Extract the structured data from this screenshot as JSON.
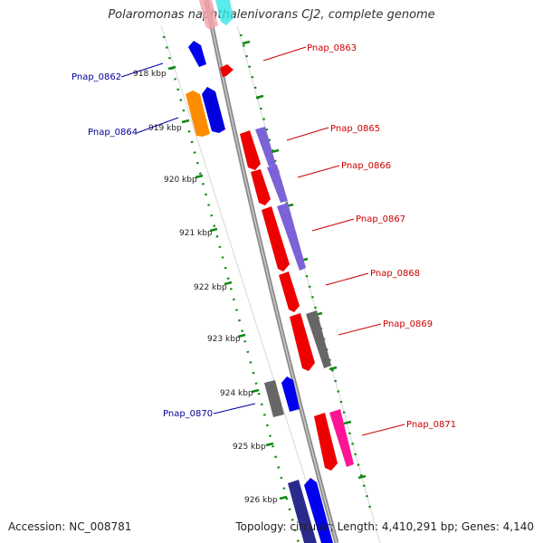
{
  "title": "Polaromonas naphthalenivorans CJ2, complete genome",
  "footer": {
    "accession": "Accession: NC_008781",
    "summary": "Topology: circular; Length: 4,410,291 bp; Genes: 4,140"
  },
  "colors": {
    "forward_label": "#cc0000",
    "reverse_label": "#000099",
    "backbone": "#888888",
    "ticks": "#118811"
  },
  "tick_labels": [
    "918 kbp",
    "919 kbp",
    "920 kbp",
    "921 kbp",
    "922 kbp",
    "923 kbp",
    "924 kbp",
    "925 kbp",
    "926 kbp"
  ],
  "genes": [
    {
      "name": "Pnap_0862",
      "strand": "reverse"
    },
    {
      "name": "Pnap_0863",
      "strand": "forward"
    },
    {
      "name": "Pnap_0864",
      "strand": "reverse"
    },
    {
      "name": "Pnap_0865",
      "strand": "forward"
    },
    {
      "name": "Pnap_0866",
      "strand": "forward"
    },
    {
      "name": "Pnap_0867",
      "strand": "forward"
    },
    {
      "name": "Pnap_0868",
      "strand": "forward"
    },
    {
      "name": "Pnap_0869",
      "strand": "forward"
    },
    {
      "name": "Pnap_0870",
      "strand": "reverse"
    },
    {
      "name": "Pnap_0871",
      "strand": "forward"
    }
  ]
}
